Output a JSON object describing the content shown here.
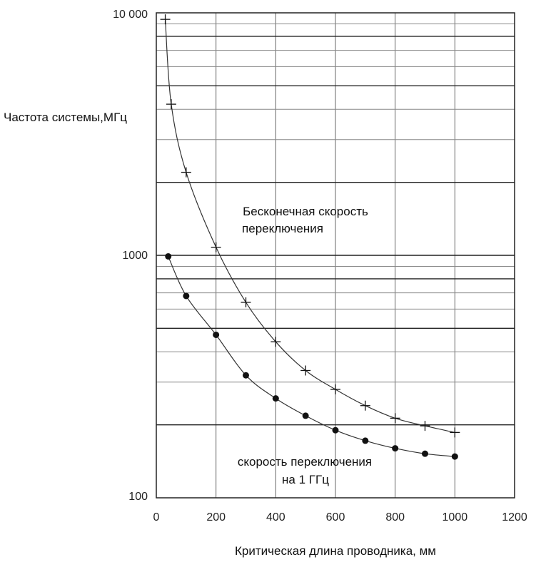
{
  "chart_data": {
    "type": "line",
    "title": "",
    "xlabel": "Критическая длина проводника, мм",
    "ylabel": "Частота системы,МГц",
    "xlim": [
      0,
      1200
    ],
    "ylim": [
      100,
      10000
    ],
    "y_scale": "log",
    "grid": true,
    "x_ticks": [
      "0",
      "200",
      "400",
      "600",
      "800",
      "1000",
      "1200"
    ],
    "y_ticks": [
      "100",
      "1000",
      "10 000"
    ],
    "x_tick_values": [
      0,
      200,
      400,
      600,
      800,
      1000,
      1200
    ],
    "y_tick_values": [
      100,
      1000,
      10000
    ],
    "series": [
      {
        "marker": "plus",
        "x": [
          30,
          50,
          100,
          200,
          300,
          400,
          500,
          600,
          700,
          800,
          900,
          1000
        ],
        "y": [
          9400,
          4200,
          2200,
          1080,
          640,
          440,
          335,
          280,
          240,
          213,
          198,
          186
        ]
      },
      {
        "marker": "dot",
        "x": [
          40,
          100,
          200,
          300,
          400,
          500,
          600,
          700,
          800,
          900,
          1000
        ],
        "y": [
          990,
          680,
          470,
          320,
          257,
          218,
          190,
          172,
          160,
          152,
          148
        ]
      }
    ],
    "annotations": [
      {
        "lines": [
          "Бесконечная скорость",
          "переключения"
        ]
      },
      {
        "lines": [
          "скорость переключения",
          "на 1 ГГц"
        ]
      }
    ]
  }
}
